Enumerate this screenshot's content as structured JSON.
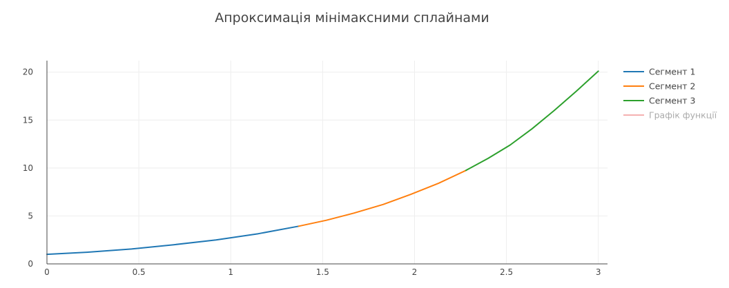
{
  "chart_data": {
    "type": "line",
    "title": "Апроксимація мінімаксними сплайнами",
    "xlabel": "",
    "ylabel": "",
    "xlim": [
      0,
      3.05
    ],
    "ylim": [
      0,
      21.2
    ],
    "x_ticks": [
      0,
      0.5,
      1,
      1.5,
      2,
      2.5,
      3
    ],
    "x_tick_labels": [
      "0",
      "0.5",
      "1",
      "1.5",
      "2",
      "2.5",
      "3"
    ],
    "y_ticks": [
      0,
      5,
      10,
      15,
      20
    ],
    "y_tick_labels": [
      "0",
      "5",
      "10",
      "15",
      "20"
    ],
    "grid": true,
    "legend_position": "right",
    "series": [
      {
        "name": "Сегмент 1",
        "color": "#1f77b4",
        "x": [
          0,
          0.23,
          0.46,
          0.69,
          0.92,
          1.15,
          1.37
        ],
        "y": [
          1.0,
          1.23,
          1.55,
          2.0,
          2.5,
          3.15,
          3.93
        ]
      },
      {
        "name": "Сегмент 2",
        "color": "#ff7f0e",
        "x": [
          1.37,
          1.52,
          1.67,
          1.83,
          1.98,
          2.13,
          2.28
        ],
        "y": [
          3.93,
          4.55,
          5.3,
          6.2,
          7.25,
          8.4,
          9.75
        ]
      },
      {
        "name": "Сегмент 3",
        "color": "#2ca02c",
        "x": [
          2.28,
          2.4,
          2.52,
          2.64,
          2.76,
          2.88,
          3.0
        ],
        "y": [
          9.75,
          11.0,
          12.4,
          14.1,
          16.0,
          18.0,
          20.1
        ]
      },
      {
        "name": "Графік функції",
        "color": "#f4a3a3",
        "legend_muted": true,
        "x": [],
        "y": []
      }
    ]
  }
}
